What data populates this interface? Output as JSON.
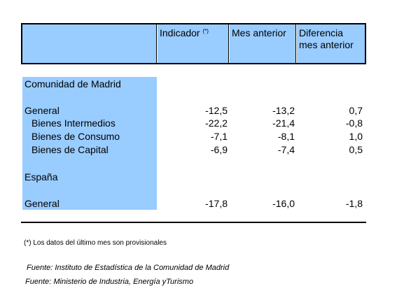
{
  "table": {
    "headers": {
      "indicador": "Indicador",
      "indicador_mark": "(*)",
      "mes_anterior": "Mes anterior",
      "diferencia_line1": "Diferencia",
      "diferencia_line2": "mes anterior"
    },
    "sections": [
      {
        "title": "Comunidad de Madrid",
        "rows": [
          {
            "label": "General",
            "indicador": "-12,5",
            "mes_anterior": "-13,2",
            "diferencia": "0,7"
          },
          {
            "label": "Bienes Intermedios",
            "indicador": "-22,2",
            "mes_anterior": "-21,4",
            "diferencia": "-0,8"
          },
          {
            "label": "Bienes de Consumo",
            "indicador": "-7,1",
            "mes_anterior": "-8,1",
            "diferencia": "1,0"
          },
          {
            "label": "Bienes de Capital",
            "indicador": "-6,9",
            "mes_anterior": "-7,4",
            "diferencia": "0,5"
          }
        ]
      },
      {
        "title": "España",
        "rows": [
          {
            "label": "General",
            "indicador": "-17,8",
            "mes_anterior": "-16,0",
            "diferencia": "-1,8"
          }
        ]
      }
    ]
  },
  "footnote": "(*) Los datos del último mes son provisionales",
  "sources": [
    "Fuente: Instituto de Estadística de la Comunidad de Madrid",
    "Fuente: Ministerio de Industria, Energía yTurismo"
  ],
  "colors": {
    "header_fill": "#99ccff",
    "rule": "#000000"
  }
}
